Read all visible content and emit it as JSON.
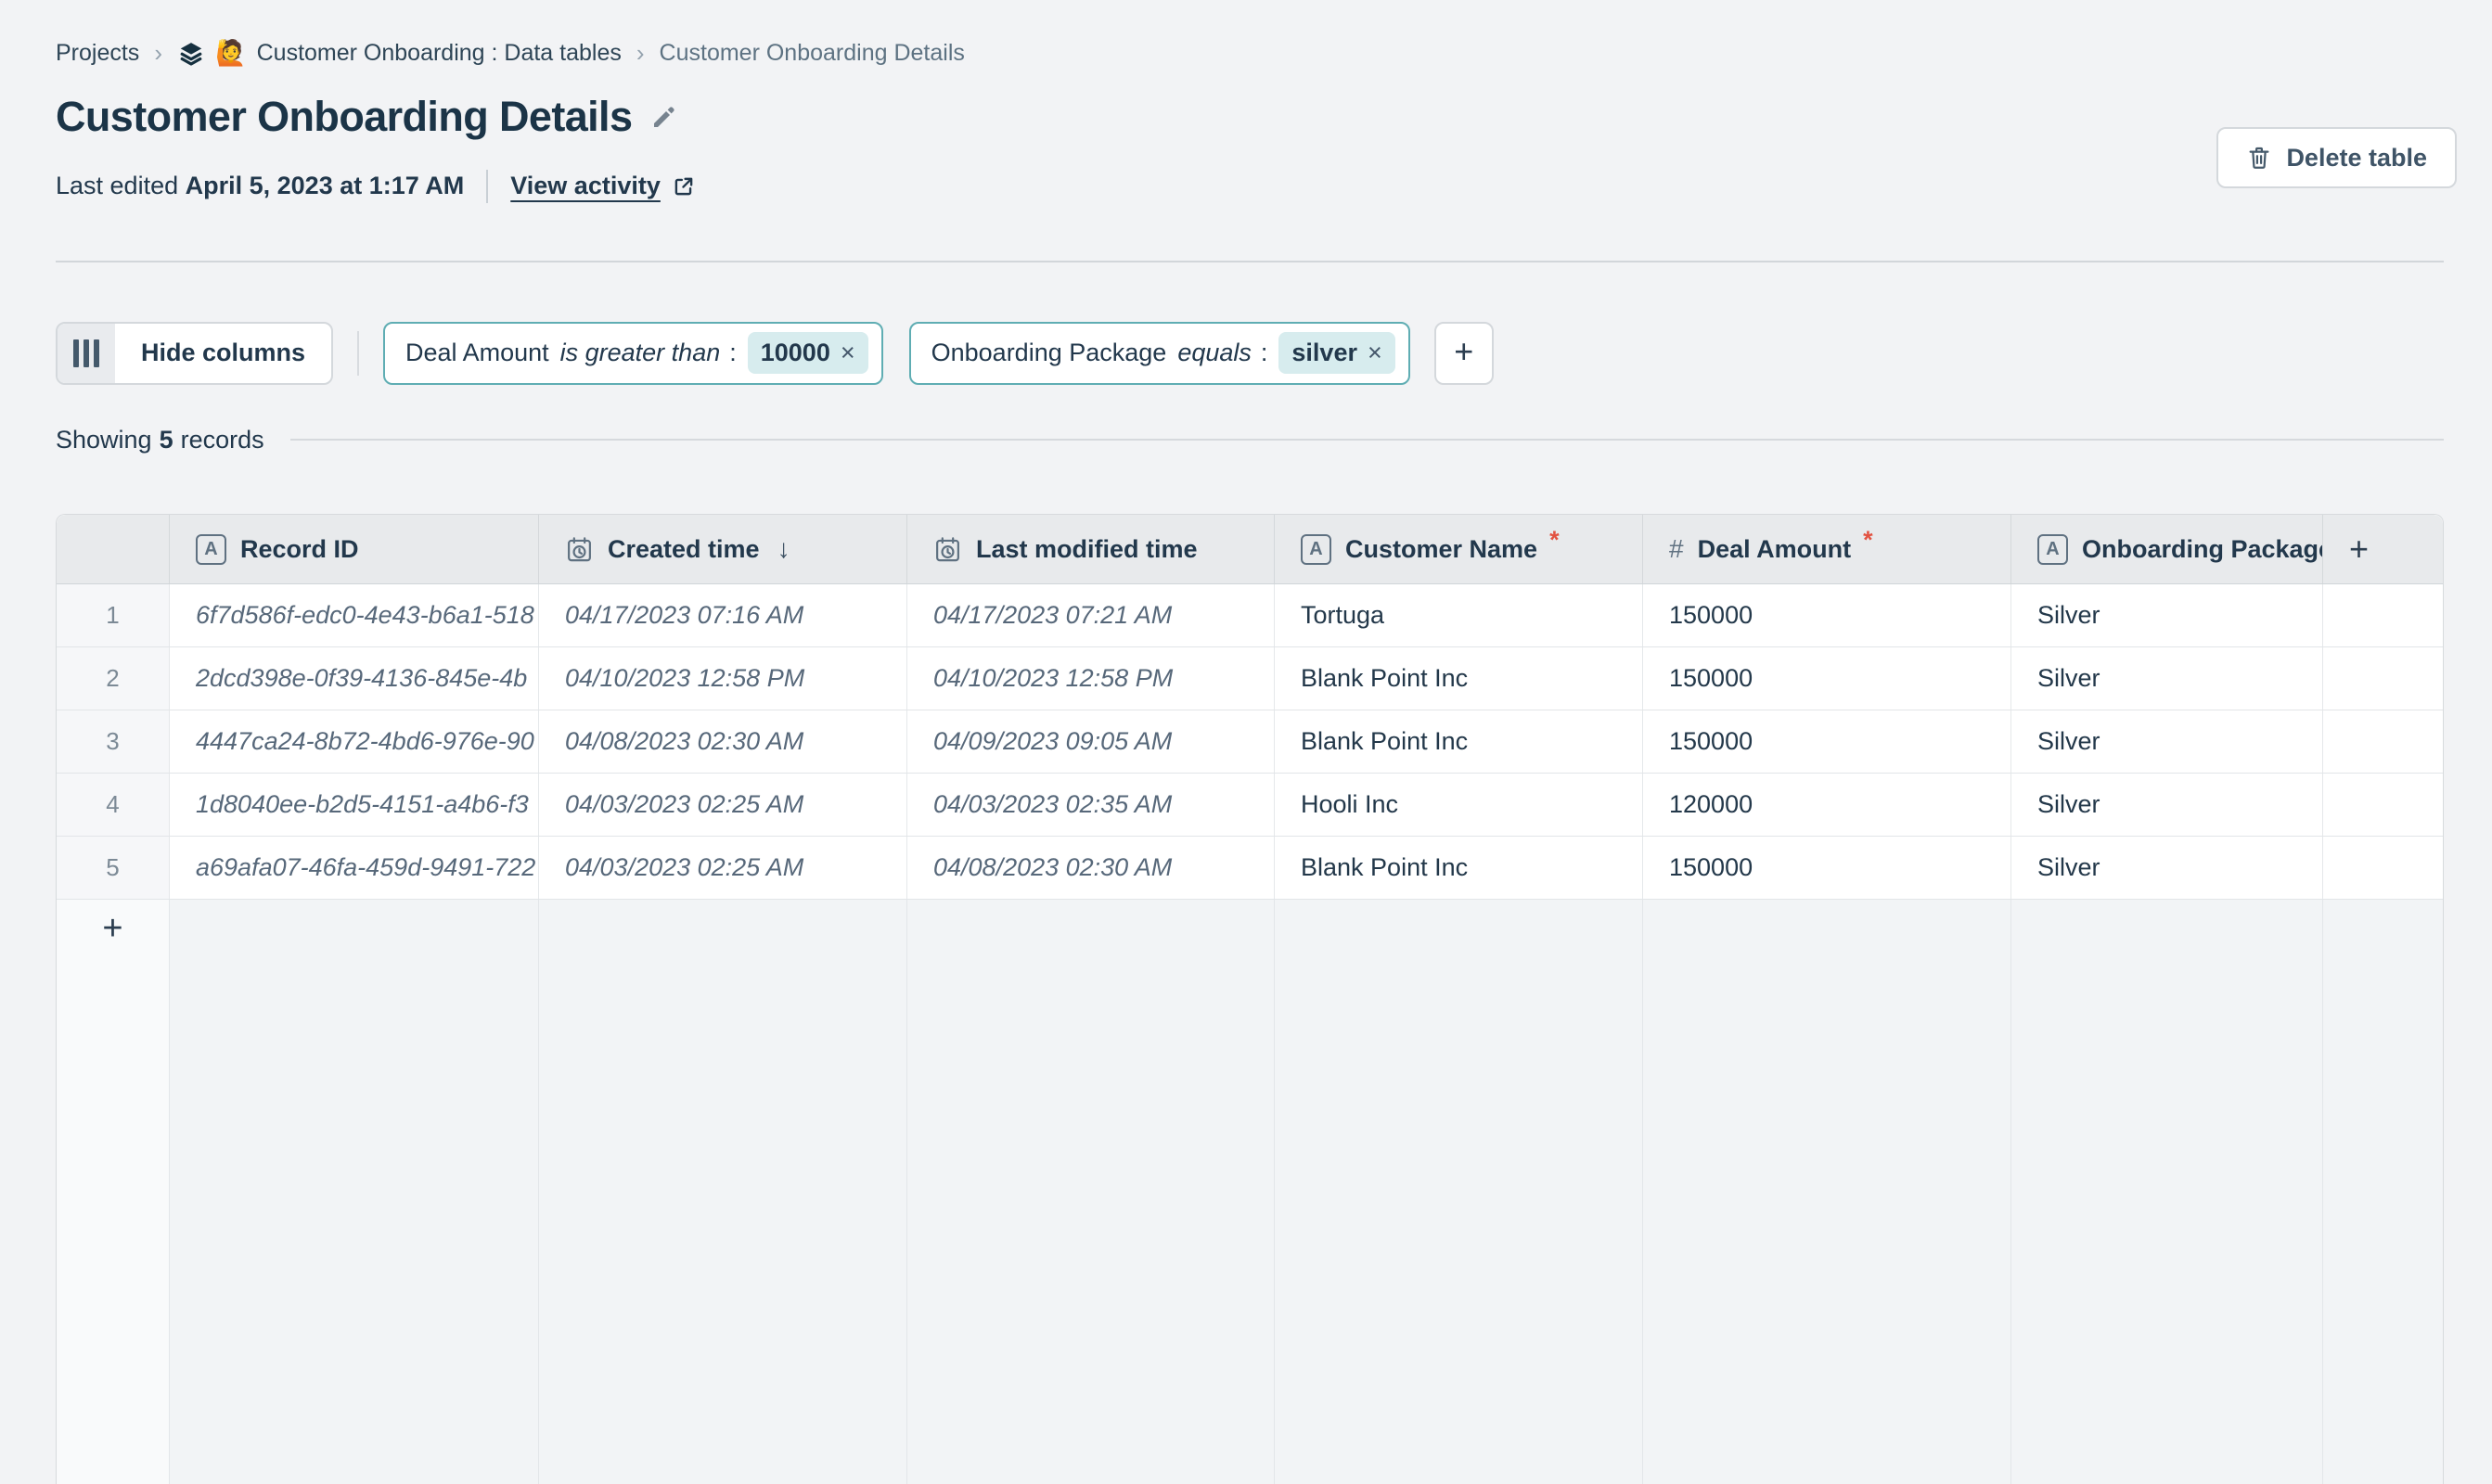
{
  "breadcrumb": {
    "root": "Projects",
    "separator": "›",
    "project": "Customer Onboarding : Data tables",
    "project_emoji": "🙋",
    "current": "Customer Onboarding Details"
  },
  "header": {
    "title": "Customer Onboarding Details",
    "last_edited_label": "Last edited",
    "last_edited_value": "April 5, 2023 at 1:17 AM",
    "view_activity_label": "View activity",
    "delete_button_label": "Delete table"
  },
  "toolbar": {
    "hide_columns_label": "Hide columns",
    "filter_colon": ":",
    "filters": [
      {
        "field": "Deal Amount",
        "operator": "is greater than",
        "value": "10000"
      },
      {
        "field": "Onboarding Package",
        "operator": "equals",
        "value": "silver"
      }
    ]
  },
  "status": {
    "showing_prefix": "Showing",
    "record_count": "5",
    "showing_suffix": "records"
  },
  "icons": {
    "sort_desc": "↓",
    "remove": "×",
    "add": "+",
    "text_type_glyph": "A",
    "number_type_glyph": "#"
  },
  "table": {
    "add_column_label": "+",
    "add_row_label": "+",
    "columns": [
      {
        "key": "record_id",
        "label": "Record ID",
        "type_icon": "text-type-icon",
        "required": false,
        "sorted": false,
        "italic": true
      },
      {
        "key": "created_time",
        "label": "Created time",
        "type_icon": "datetime-type-icon",
        "required": false,
        "sorted": true,
        "italic": true
      },
      {
        "key": "last_modified_time",
        "label": "Last modified time",
        "type_icon": "datetime-type-icon",
        "required": false,
        "sorted": false,
        "italic": true
      },
      {
        "key": "customer_name",
        "label": "Customer Name",
        "type_icon": "text-type-icon",
        "required": true,
        "sorted": false,
        "italic": false
      },
      {
        "key": "deal_amount",
        "label": "Deal Amount",
        "type_icon": "number-type-icon",
        "required": true,
        "sorted": false,
        "italic": false
      },
      {
        "key": "onboarding_package",
        "label": "Onboarding Package",
        "type_icon": "text-type-icon",
        "required": true,
        "sorted": false,
        "italic": false
      }
    ],
    "rows": [
      {
        "num": "1",
        "record_id": "6f7d586f-edc0-4e43-b6a1-518",
        "created_time": "04/17/2023 07:16 AM",
        "last_modified_time": "04/17/2023 07:21 AM",
        "customer_name": "Tortuga",
        "deal_amount": "150000",
        "onboarding_package": "Silver"
      },
      {
        "num": "2",
        "record_id": "2dcd398e-0f39-4136-845e-4b",
        "created_time": "04/10/2023 12:58 PM",
        "last_modified_time": "04/10/2023 12:58 PM",
        "customer_name": "Blank Point Inc",
        "deal_amount": "150000",
        "onboarding_package": "Silver"
      },
      {
        "num": "3",
        "record_id": "4447ca24-8b72-4bd6-976e-90",
        "created_time": "04/08/2023 02:30 AM",
        "last_modified_time": "04/09/2023 09:05 AM",
        "customer_name": "Blank Point Inc",
        "deal_amount": "150000",
        "onboarding_package": "Silver"
      },
      {
        "num": "4",
        "record_id": "1d8040ee-b2d5-4151-a4b6-f3",
        "created_time": "04/03/2023 02:25 AM",
        "last_modified_time": "04/03/2023 02:35 AM",
        "customer_name": "Hooli Inc",
        "deal_amount": "120000",
        "onboarding_package": "Silver"
      },
      {
        "num": "5",
        "record_id": "a69afa07-46fa-459d-9491-722",
        "created_time": "04/03/2023 02:25 AM",
        "last_modified_time": "04/08/2023 02:30 AM",
        "customer_name": "Blank Point Inc",
        "deal_amount": "150000",
        "onboarding_package": "Silver"
      }
    ]
  },
  "colors": {
    "page_bg": "#f2f3f5",
    "header_bg": "#e8eaec",
    "accent_teal": "#5fadb3",
    "chip_value_bg": "#d7ecee",
    "required_red": "#e25241",
    "text_dark": "#22384c",
    "text_muted": "#57687a"
  }
}
